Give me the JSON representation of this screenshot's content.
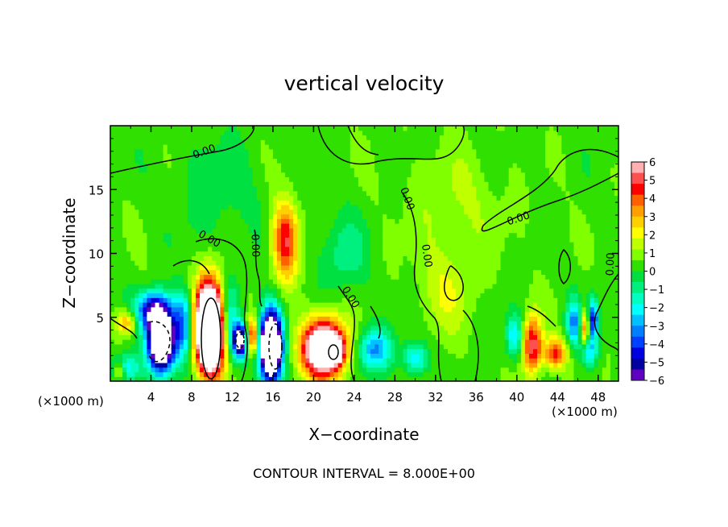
{
  "chart_data": {
    "type": "heatmap",
    "title": "vertical velocity",
    "xlabel": "X−coordinate",
    "ylabel": "Z−coordinate",
    "x_unit_label": "(×1000 m)",
    "z_unit_label": "(×1000 m)",
    "footer": "CONTOUR INTERVAL = 8.000E+00",
    "xlim": [
      0,
      50
    ],
    "ylim": [
      0,
      20
    ],
    "x_ticks": [
      "4",
      "8",
      "12",
      "16",
      "20",
      "24",
      "28",
      "32",
      "36",
      "40",
      "44",
      "48"
    ],
    "y_ticks": [
      "5",
      "10",
      "15"
    ],
    "colorbar": {
      "range": [
        -6,
        6
      ],
      "tick_labels": [
        "6",
        "5",
        "4",
        "3",
        "2",
        "1",
        "0",
        "−1",
        "−2",
        "−3",
        "−4",
        "−5",
        "−6"
      ],
      "colors": [
        "#ffb0b0",
        "#ff5050",
        "#ff0000",
        "#ff6000",
        "#ffa000",
        "#ffd000",
        "#ffff00",
        "#c0ff00",
        "#80ff00",
        "#30e000",
        "#00e040",
        "#00f080",
        "#00ffc0",
        "#00ffff",
        "#00c0ff",
        "#0080ff",
        "#0040ff",
        "#0000e0",
        "#0000a0",
        "#6000c0"
      ]
    },
    "contour_labels": [
      "0.00",
      "0.00",
      "0.00",
      "0.00",
      "0.00",
      "0.00",
      "0.00",
      "0.00"
    ],
    "features": [
      {
        "x": 5.0,
        "z": 3.2,
        "w": -12,
        "sx": 0.9,
        "sz": 1.6
      },
      {
        "x": 4.2,
        "z": 5.6,
        "w": -5,
        "sx": 1.2,
        "sz": 1.0
      },
      {
        "x": 1.5,
        "z": 1.0,
        "w": -3,
        "sx": 1.0,
        "sz": 0.8
      },
      {
        "x": 1.6,
        "z": 4.6,
        "w": 3,
        "sx": 0.7,
        "sz": 0.7
      },
      {
        "x": 0.9,
        "z": 0.8,
        "w": 3,
        "sx": 0.4,
        "sz": 0.5
      },
      {
        "x": 7.2,
        "z": 4.5,
        "w": -4,
        "sx": 0.7,
        "sz": 1.8
      },
      {
        "x": 9.8,
        "z": 4.2,
        "w": 14,
        "sx": 1.0,
        "sz": 2.4
      },
      {
        "x": 11.6,
        "z": 5.0,
        "w": -3,
        "sx": 0.7,
        "sz": 2.0
      },
      {
        "x": 12.8,
        "z": 3.2,
        "w": -8,
        "sx": 0.55,
        "sz": 0.9
      },
      {
        "x": 13.9,
        "z": 3.5,
        "w": 5,
        "sx": 0.45,
        "sz": 1.0
      },
      {
        "x": 15.8,
        "z": 2.8,
        "w": -13,
        "sx": 0.75,
        "sz": 1.9
      },
      {
        "x": 17.2,
        "z": 11.0,
        "w": 4.5,
        "sx": 0.9,
        "sz": 2.2
      },
      {
        "x": 21.0,
        "z": 2.6,
        "w": 9,
        "sx": 1.5,
        "sz": 1.6
      },
      {
        "x": 22.1,
        "z": 2.4,
        "w": 6,
        "sx": 0.5,
        "sz": 0.6
      },
      {
        "x": 26.0,
        "z": 2.5,
        "w": -3.5,
        "sx": 1.2,
        "sz": 1.2
      },
      {
        "x": 30.0,
        "z": 1.8,
        "w": -3,
        "sx": 0.8,
        "sz": 0.9
      },
      {
        "x": 23.0,
        "z": 10.0,
        "w": -1.5,
        "sx": 1.5,
        "sz": 2.0
      },
      {
        "x": 33.0,
        "z": 7.0,
        "w": 1.2,
        "sx": 2.0,
        "sz": 2.5
      },
      {
        "x": 41.5,
        "z": 2.8,
        "w": 5,
        "sx": 0.7,
        "sz": 1.6
      },
      {
        "x": 43.8,
        "z": 2.2,
        "w": 4,
        "sx": 0.8,
        "sz": 0.8
      },
      {
        "x": 39.8,
        "z": 3.5,
        "w": -3,
        "sx": 0.6,
        "sz": 1.2
      },
      {
        "x": 45.6,
        "z": 4.6,
        "w": -3.5,
        "sx": 0.5,
        "sz": 1.3
      },
      {
        "x": 46.7,
        "z": 4.2,
        "w": 4,
        "sx": 0.3,
        "sz": 0.9
      },
      {
        "x": 47.5,
        "z": 4.8,
        "w": -5,
        "sx": 0.35,
        "sz": 1.1
      },
      {
        "x": 47.2,
        "z": 2.3,
        "w": -2.5,
        "sx": 0.6,
        "sz": 0.8
      },
      {
        "x": 10.5,
        "z": 15.0,
        "w": -0.8,
        "sx": 3.0,
        "sz": 3.0
      },
      {
        "x": 34.0,
        "z": 14.0,
        "w": 0.8,
        "sx": 3.5,
        "sz": 3.0
      }
    ]
  }
}
